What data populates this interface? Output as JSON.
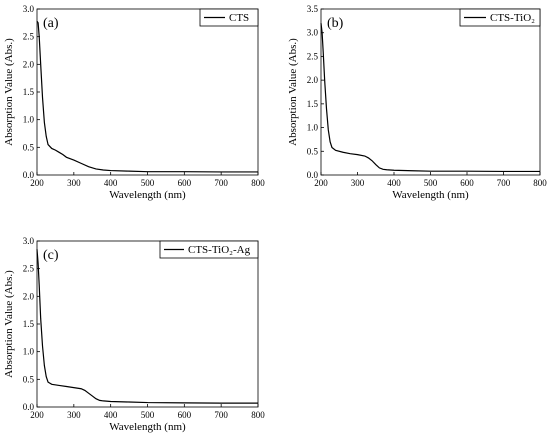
{
  "chart_data": [
    {
      "type": "line",
      "panel_label": "(a)",
      "xlabel": "Wavelength (nm)",
      "ylabel": "Absorption Value (Abs.)",
      "xlim": [
        200,
        800
      ],
      "ylim": [
        0.0,
        3.0
      ],
      "xticks": [
        200,
        300,
        400,
        500,
        600,
        700,
        800
      ],
      "yticks": [
        0.0,
        0.5,
        1.0,
        1.5,
        2.0,
        2.5,
        3.0
      ],
      "ytick_labels": [
        "0.0",
        "0.5",
        "1.0",
        "1.5",
        "2.0",
        "2.5",
        "3.0"
      ],
      "legend_placement": "top-right",
      "series": [
        {
          "name": "CTS",
          "x": [
            200,
            203,
            206,
            210,
            215,
            220,
            225,
            230,
            240,
            250,
            260,
            270,
            280,
            300,
            320,
            340,
            360,
            380,
            400,
            450,
            500,
            600,
            700,
            800
          ],
          "y": [
            2.78,
            2.75,
            2.5,
            2.0,
            1.4,
            0.95,
            0.7,
            0.55,
            0.48,
            0.45,
            0.41,
            0.37,
            0.32,
            0.27,
            0.21,
            0.15,
            0.11,
            0.09,
            0.08,
            0.07,
            0.06,
            0.06,
            0.055,
            0.055
          ]
        }
      ]
    },
    {
      "type": "line",
      "panel_label": "(b)",
      "xlabel": "Wavelength (nm)",
      "ylabel": "Absorption Value (Abs.)",
      "xlim": [
        200,
        800
      ],
      "ylim": [
        0.0,
        3.5
      ],
      "xticks": [
        200,
        300,
        400,
        500,
        600,
        700,
        800
      ],
      "yticks": [
        0.0,
        0.5,
        1.0,
        1.5,
        2.0,
        2.5,
        3.0,
        3.5
      ],
      "ytick_labels": [
        "0.0",
        "0.5",
        "1.0",
        "1.5",
        "2.0",
        "2.5",
        "3.0",
        "3.5"
      ],
      "legend_placement": "top-right",
      "series": [
        {
          "name": "CTS-TiO₂",
          "x": [
            200,
            203,
            206,
            210,
            215,
            220,
            225,
            230,
            240,
            260,
            280,
            300,
            320,
            330,
            340,
            350,
            360,
            370,
            380,
            400,
            450,
            500,
            600,
            700,
            800
          ],
          "y": [
            3.2,
            3.0,
            2.6,
            2.0,
            1.4,
            0.95,
            0.7,
            0.58,
            0.52,
            0.48,
            0.45,
            0.43,
            0.4,
            0.36,
            0.3,
            0.22,
            0.15,
            0.12,
            0.11,
            0.1,
            0.09,
            0.08,
            0.08,
            0.075,
            0.075
          ]
        }
      ]
    },
    {
      "type": "line",
      "panel_label": "(c)",
      "xlabel": "Wavelength (nm)",
      "ylabel": "Absorption Value (Abs.)",
      "xlim": [
        200,
        800
      ],
      "ylim": [
        0.0,
        3.0
      ],
      "xticks": [
        200,
        300,
        400,
        500,
        600,
        700,
        800
      ],
      "yticks": [
        0.0,
        0.5,
        1.0,
        1.5,
        2.0,
        2.5,
        3.0
      ],
      "ytick_labels": [
        "0.0",
        "0.5",
        "1.0",
        "1.5",
        "2.0",
        "2.5",
        "3.0"
      ],
      "legend_placement": "top-right",
      "series": [
        {
          "name": "CTS-TiO₂-Ag",
          "x": [
            200,
            203,
            206,
            210,
            215,
            220,
            225,
            230,
            240,
            260,
            280,
            300,
            320,
            330,
            340,
            350,
            360,
            370,
            380,
            400,
            450,
            500,
            600,
            700,
            800
          ],
          "y": [
            2.85,
            2.6,
            2.2,
            1.6,
            1.1,
            0.75,
            0.55,
            0.45,
            0.41,
            0.39,
            0.37,
            0.35,
            0.33,
            0.3,
            0.25,
            0.2,
            0.15,
            0.12,
            0.11,
            0.1,
            0.09,
            0.08,
            0.075,
            0.07,
            0.07
          ]
        }
      ]
    }
  ]
}
